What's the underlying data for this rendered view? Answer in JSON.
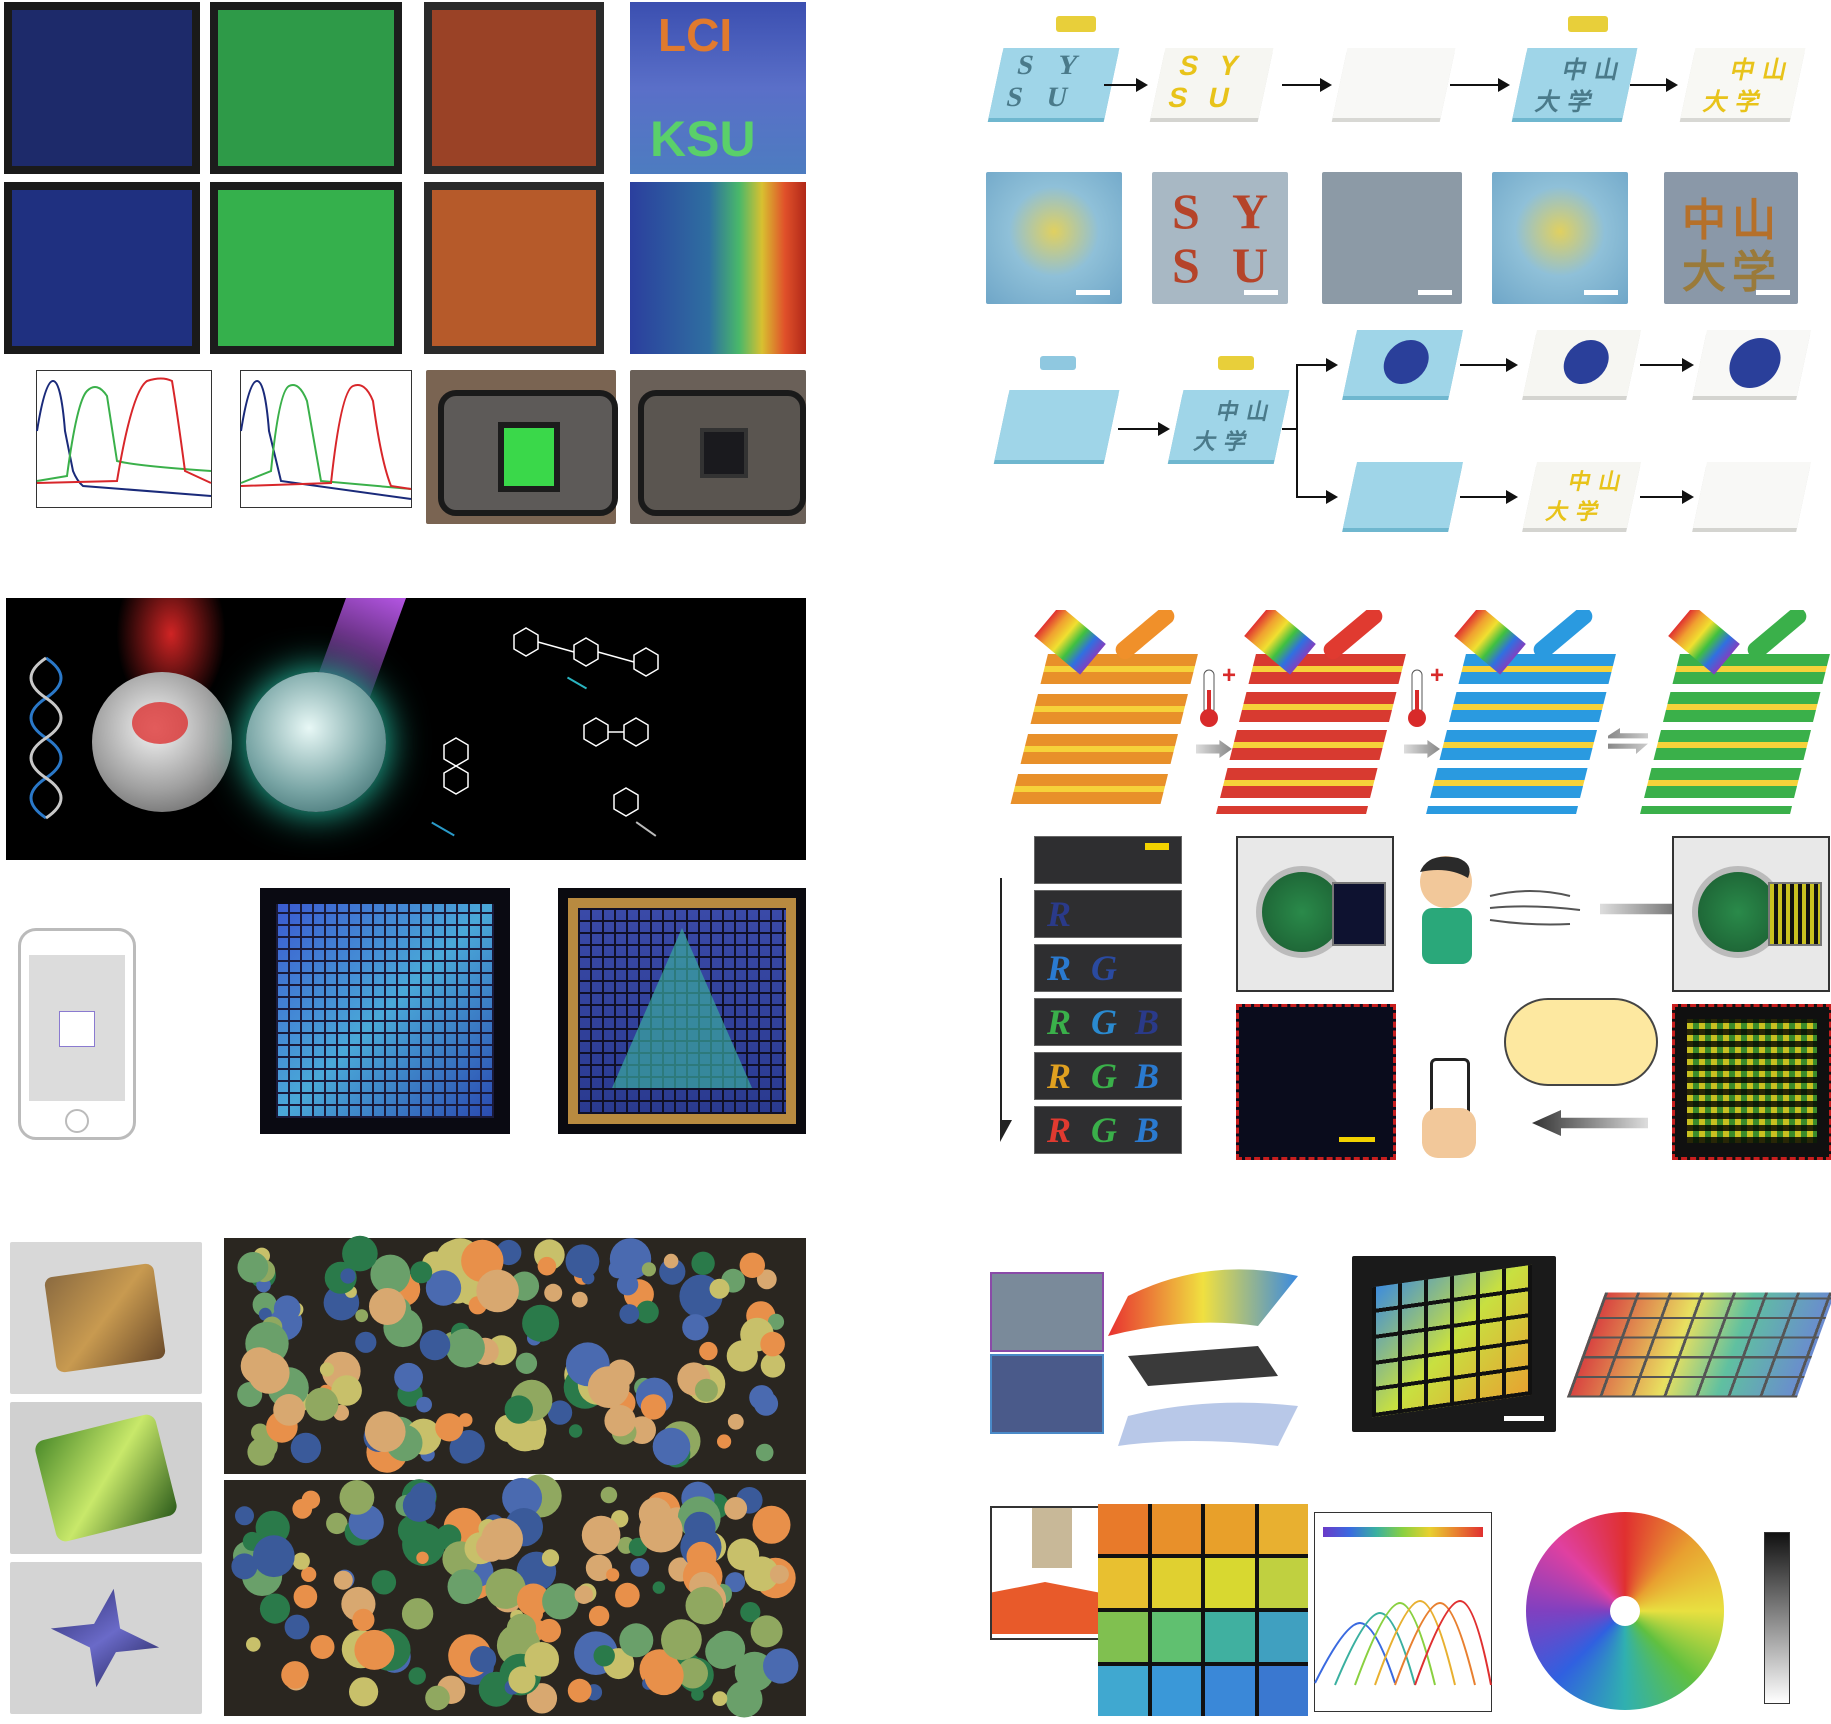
{
  "colors": {
    "blue_film": "#1f3a8a",
    "green_film": "#2fa84a",
    "red_film": "#b5502a",
    "cyan_card": "#8fd0e3",
    "yellow_text": "#e8c31a",
    "black_bg": "#000000",
    "scale_yellow": "#f2d200"
  },
  "panel_a": {
    "tile_text_1": "LCI",
    "tile_text_2": "KSU"
  },
  "panel_b": {
    "card1_letters": [
      "S",
      "Y",
      "S",
      "U"
    ],
    "card4_chars": [
      "中",
      "山",
      "大",
      "学"
    ],
    "photo2_letters": [
      "S",
      "Y",
      "S",
      "U"
    ],
    "photo5_chars": [
      "中",
      "山",
      "大",
      "学"
    ],
    "row3_chars": [
      "中",
      "山",
      "大",
      "学"
    ]
  },
  "panel_d": {
    "thermo_sign": "+",
    "strip_letters": [
      "R",
      "G",
      "B"
    ]
  },
  "icons": {
    "printer": "printer-head-icon",
    "phone": "smartphone-icon",
    "thermometer": "thermometer-icon",
    "rainbow": "rainbow-beam-icon"
  }
}
